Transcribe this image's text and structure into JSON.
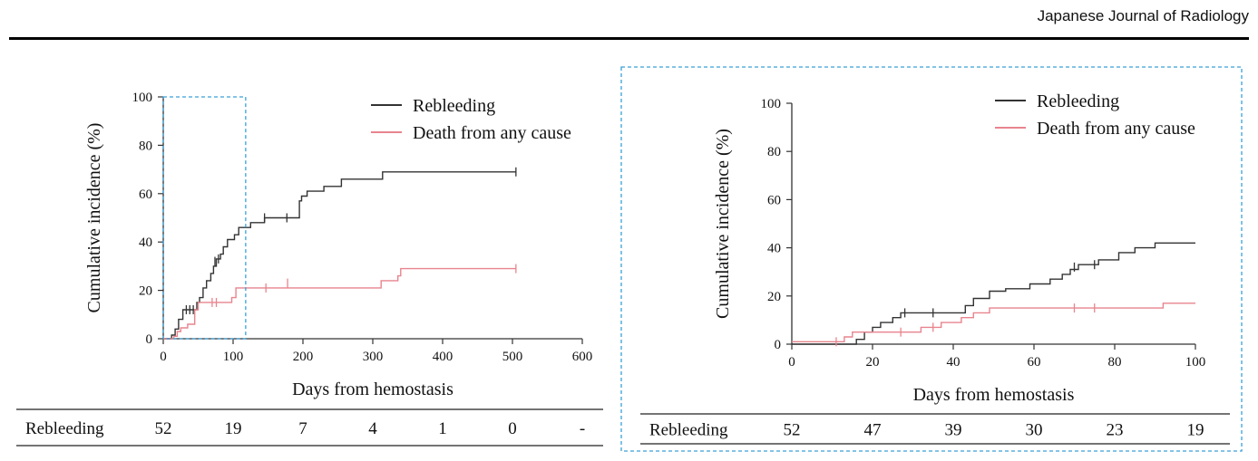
{
  "header": {
    "journal": "Japanese Journal of Radiology"
  },
  "colors": {
    "rebleeding": "#333333",
    "death": "#e8848e",
    "box": "#3aa0d8"
  },
  "chart_data": [
    {
      "type": "line",
      "step": true,
      "xlabel": "Days from hemostasis",
      "ylabel": "Cumulative incidence (%)",
      "xlim": [
        0,
        600
      ],
      "ylim": [
        0,
        100
      ],
      "xticks": [
        "0",
        "100",
        "200",
        "300",
        "400",
        "500",
        "600"
      ],
      "yticks": [
        "0",
        "20",
        "40",
        "60",
        "80",
        "100"
      ],
      "legend_position": "top-right",
      "zoom_box_x": [
        0,
        118
      ],
      "series": [
        {
          "name": "Rebleeding",
          "color": "#333333",
          "points": [
            [
              0,
              0
            ],
            [
              12,
              1.5
            ],
            [
              17,
              4
            ],
            [
              22,
              8
            ],
            [
              28,
              12
            ],
            [
              45,
              12
            ],
            [
              48,
              15
            ],
            [
              52,
              17
            ],
            [
              57,
              21
            ],
            [
              62,
              24
            ],
            [
              68,
              27
            ],
            [
              72,
              30
            ],
            [
              76,
              33
            ],
            [
              82,
              35
            ],
            [
              86,
              38
            ],
            [
              92,
              41
            ],
            [
              102,
              43
            ],
            [
              108,
              46
            ],
            [
              122,
              46
            ],
            [
              125,
              48
            ],
            [
              145,
              50
            ],
            [
              192,
              50
            ],
            [
              195,
              57
            ],
            [
              198,
              59
            ],
            [
              206,
              61
            ],
            [
              230,
              63
            ],
            [
              255,
              66
            ],
            [
              312,
              66
            ],
            [
              314,
              69
            ],
            [
              505,
              69
            ]
          ],
          "censor": [
            [
              33,
              12
            ],
            [
              38,
              12
            ],
            [
              43,
              12
            ],
            [
              74,
              32
            ],
            [
              79,
              33
            ],
            [
              145,
              50
            ],
            [
              177,
              50
            ],
            [
              505,
              69
            ]
          ]
        },
        {
          "name": "Death from any cause",
          "color": "#e8848e",
          "points": [
            [
              0,
              0
            ],
            [
              15,
              1
            ],
            [
              20,
              3
            ],
            [
              25,
              4.5
            ],
            [
              35,
              6
            ],
            [
              45,
              12
            ],
            [
              50,
              15
            ],
            [
              98,
              17
            ],
            [
              104,
              21
            ],
            [
              310,
              21
            ],
            [
              312,
              24
            ],
            [
              336,
              26
            ],
            [
              340,
              29
            ],
            [
              505,
              29
            ]
          ],
          "censor": [
            [
              70,
              15
            ],
            [
              76,
              15
            ],
            [
              147,
              21
            ],
            [
              178,
              23
            ],
            [
              505,
              29
            ]
          ]
        }
      ],
      "risk_table": {
        "label": "Rebleeding",
        "values": [
          "52",
          "19",
          "7",
          "4",
          "1",
          "0",
          "-"
        ]
      }
    },
    {
      "type": "line",
      "step": true,
      "xlabel": "Days from hemostasis",
      "ylabel": "Cumulative incidence (%)",
      "xlim": [
        0,
        100
      ],
      "ylim": [
        0,
        100
      ],
      "xticks": [
        "0",
        "20",
        "40",
        "60",
        "80",
        "100"
      ],
      "yticks": [
        "0",
        "20",
        "40",
        "60",
        "80",
        "100"
      ],
      "legend_position": "top-right",
      "series": [
        {
          "name": "Rebleeding",
          "color": "#333333",
          "points": [
            [
              0,
              0
            ],
            [
              16,
              2
            ],
            [
              18,
              5
            ],
            [
              20,
              7
            ],
            [
              22,
              9
            ],
            [
              25,
              11
            ],
            [
              27,
              13
            ],
            [
              42,
              13
            ],
            [
              43,
              16
            ],
            [
              45,
              19
            ],
            [
              49,
              22
            ],
            [
              53,
              23
            ],
            [
              59,
              25
            ],
            [
              64,
              27
            ],
            [
              67,
              29
            ],
            [
              69,
              31
            ],
            [
              71,
              33
            ],
            [
              76,
              35
            ],
            [
              81,
              38
            ],
            [
              85,
              40
            ],
            [
              90,
              42
            ],
            [
              100,
              42
            ]
          ],
          "censor": [
            [
              28,
              13
            ],
            [
              35,
              13
            ],
            [
              70,
              32
            ],
            [
              75,
              33
            ]
          ]
        },
        {
          "name": "Death from any cause",
          "color": "#e8848e",
          "points": [
            [
              0,
              1
            ],
            [
              11,
              1
            ],
            [
              13,
              3
            ],
            [
              15,
              5
            ],
            [
              30,
              5
            ],
            [
              32,
              7
            ],
            [
              37,
              9
            ],
            [
              42,
              11
            ],
            [
              45,
              13
            ],
            [
              49,
              15
            ],
            [
              91,
              15
            ],
            [
              92,
              17
            ],
            [
              100,
              17
            ]
          ],
          "censor": [
            [
              11,
              1
            ],
            [
              27,
              5
            ],
            [
              35,
              7
            ],
            [
              70,
              15
            ],
            [
              75,
              15
            ]
          ]
        }
      ],
      "risk_table": {
        "label": "Rebleeding",
        "values": [
          "52",
          "47",
          "39",
          "30",
          "23",
          "19"
        ]
      }
    }
  ]
}
